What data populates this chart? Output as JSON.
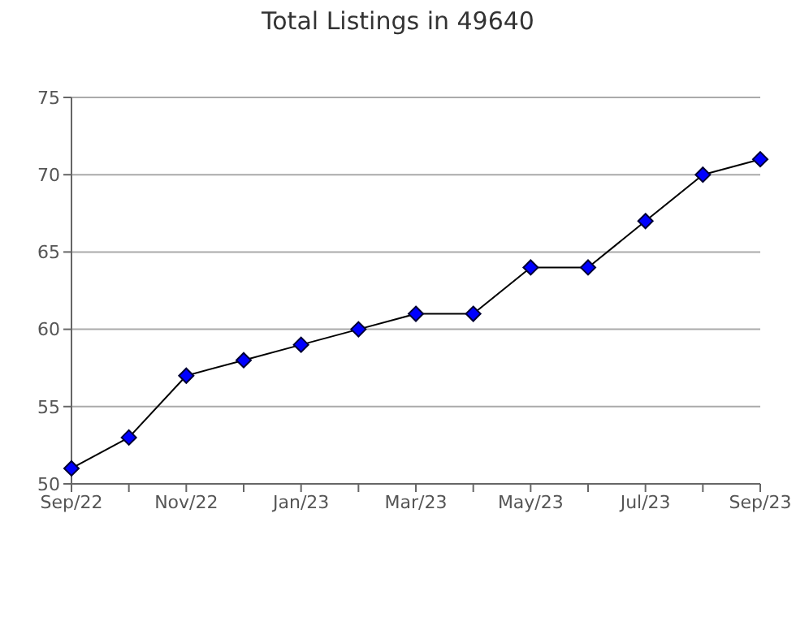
{
  "chart_data": {
    "type": "line",
    "title": "Total Listings in 49640",
    "categories": [
      "Sep/22",
      null,
      "Nov/22",
      null,
      "Jan/23",
      null,
      "Mar/23",
      null,
      "May/23",
      null,
      "Jul/23",
      null,
      "Sep/23"
    ],
    "series": [
      {
        "color": "#0000ff",
        "values": [
          51,
          53,
          57,
          58,
          59,
          60,
          61,
          61,
          64,
          64,
          67,
          70,
          71
        ]
      }
    ],
    "ylim": [
      50,
      75
    ],
    "yticks": [
      50,
      55,
      60,
      65,
      70,
      75
    ],
    "grid": "y",
    "marker": "diamond",
    "line_style": "solid"
  }
}
